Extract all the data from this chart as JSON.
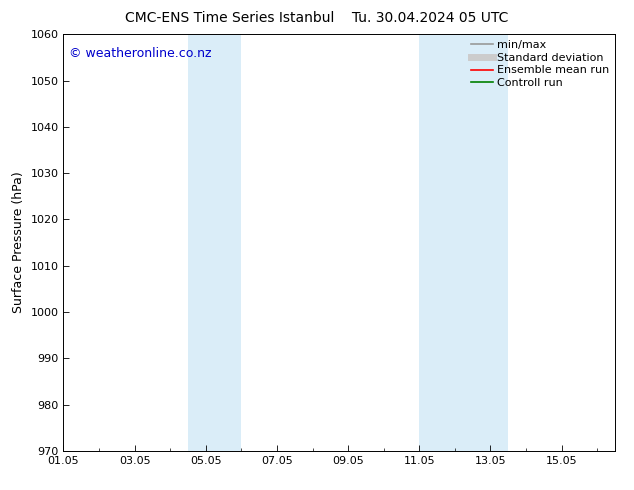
{
  "title": "CMC-ENS Time Series Istanbul",
  "title2": "Tu. 30.04.2024 05 UTC",
  "ylabel": "Surface Pressure (hPa)",
  "ylim": [
    970,
    1060
  ],
  "yticks": [
    970,
    980,
    990,
    1000,
    1010,
    1020,
    1030,
    1040,
    1050,
    1060
  ],
  "xlim": [
    0.0,
    15.5
  ],
  "xtick_labels": [
    "01.05",
    "03.05",
    "05.05",
    "07.05",
    "09.05",
    "11.05",
    "13.05",
    "15.05"
  ],
  "xtick_positions": [
    0,
    2,
    4,
    6,
    8,
    10,
    12,
    14
  ],
  "shaded_bands": [
    {
      "x_start": 3.5,
      "x_end": 5.0
    },
    {
      "x_start": 10.0,
      "x_end": 12.5
    }
  ],
  "shaded_color": "#daedf8",
  "watermark_text": "© weatheronline.co.nz",
  "watermark_color": "#0000cc",
  "legend_entries": [
    {
      "label": "min/max",
      "color": "#999999",
      "lw": 1.2,
      "style": "solid"
    },
    {
      "label": "Standard deviation",
      "color": "#cccccc",
      "lw": 5,
      "style": "solid"
    },
    {
      "label": "Ensemble mean run",
      "color": "#ff0000",
      "lw": 1.2,
      "style": "solid"
    },
    {
      "label": "Controll run",
      "color": "#008000",
      "lw": 1.2,
      "style": "solid"
    }
  ],
  "bg_color": "#ffffff",
  "spine_color": "#000000",
  "tick_color": "#000000",
  "font_size_title": 10,
  "font_size_axis": 9,
  "font_size_ticks": 8,
  "font_size_legend": 8,
  "font_size_watermark": 9
}
